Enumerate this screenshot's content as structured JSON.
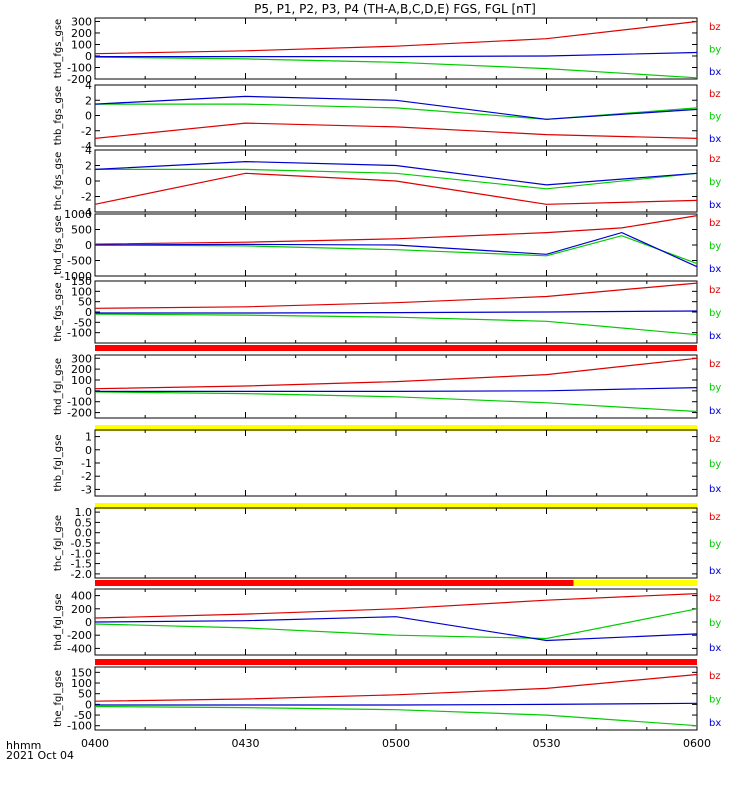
{
  "title": "P5, P1, P2, P3, P4 (TH-A,B,C,D,E) FGS, FGL [nT]",
  "time_axis": {
    "ticks": [
      "0400",
      "0430",
      "0500",
      "0530",
      "0600"
    ],
    "label_top": "hhmm",
    "label_bottom": "2021 Oct 04"
  },
  "legend_colors": {
    "bz": "#dd0000",
    "by": "#00cc00",
    "bx": "#0000cc"
  },
  "status_colors": {
    "red": "#ff0000",
    "yellow": "#ffff00",
    "black": "#000000"
  },
  "chart_data": [
    {
      "type": "line",
      "panel_id": "thd_fgs_gse",
      "ylabel": "thd_fgs_gse",
      "ylim": [
        -200,
        330
      ],
      "yticks": [
        "300",
        "200",
        "100",
        "0",
        "-100",
        "-200"
      ],
      "legend": [
        "bz",
        "by",
        "bx"
      ],
      "x": [
        "0400",
        "0430",
        "0500",
        "0530",
        "0600"
      ],
      "series": [
        {
          "name": "bz",
          "values": [
            20,
            45,
            85,
            150,
            300
          ]
        },
        {
          "name": "by",
          "values": [
            -10,
            -25,
            -55,
            -110,
            -190
          ]
        },
        {
          "name": "bx",
          "values": [
            -5,
            -5,
            -5,
            0,
            30
          ]
        }
      ]
    },
    {
      "type": "line",
      "panel_id": "thb_fgs_gse",
      "ylabel": "thb_fgs_gse",
      "ylim": [
        -4,
        4
      ],
      "yticks": [
        "4",
        "2",
        "0",
        "-2",
        "-4"
      ],
      "legend": [
        "bz",
        "by",
        "bx"
      ],
      "x": [
        "0400",
        "0430",
        "0500",
        "0530",
        "0600"
      ],
      "series": [
        {
          "name": "bz",
          "values": [
            -3,
            -1,
            -1.5,
            -2.5,
            -3
          ]
        },
        {
          "name": "by",
          "values": [
            1.5,
            1.5,
            1,
            -0.5,
            1
          ]
        },
        {
          "name": "bx",
          "values": [
            1.5,
            2.5,
            2,
            -0.5,
            0.8
          ]
        }
      ]
    },
    {
      "type": "line",
      "panel_id": "thc_fgs_gse",
      "ylabel": "thc_fgs_gse",
      "ylim": [
        -4,
        4
      ],
      "yticks": [
        "4",
        "2",
        "0",
        "-2",
        "-4"
      ],
      "legend": [
        "bz",
        "by",
        "bx"
      ],
      "x": [
        "0400",
        "0430",
        "0500",
        "0530",
        "0600"
      ],
      "series": [
        {
          "name": "bz",
          "values": [
            -3,
            1,
            0,
            -3,
            -2.5
          ]
        },
        {
          "name": "by",
          "values": [
            1.5,
            1.5,
            1,
            -1,
            1
          ]
        },
        {
          "name": "bx",
          "values": [
            1.5,
            2.5,
            2,
            -0.5,
            1
          ]
        }
      ]
    },
    {
      "type": "line",
      "panel_id": "thd_fgs_gse_2",
      "ylabel": "thd_fgs_gse",
      "ylim": [
        -1000,
        1000
      ],
      "yticks": [
        "1000",
        "500",
        "0",
        "-500",
        "-1000"
      ],
      "legend": [
        "bz",
        "by",
        "bx"
      ],
      "x": [
        "0400",
        "0430",
        "0500",
        "0530",
        "0545",
        "0600"
      ],
      "series": [
        {
          "name": "bz",
          "values": [
            30,
            90,
            200,
            400,
            550,
            950
          ]
        },
        {
          "name": "by",
          "values": [
            0,
            -30,
            -150,
            -350,
            300,
            -600
          ]
        },
        {
          "name": "bx",
          "values": [
            0,
            20,
            0,
            -300,
            400,
            -700
          ]
        }
      ]
    },
    {
      "type": "line",
      "panel_id": "the_fgs_gse",
      "ylabel": "the_fgs_gse",
      "ylim": [
        -150,
        150
      ],
      "yticks": [
        "150",
        "100",
        "50",
        "0",
        "-50",
        "-100"
      ],
      "legend": [
        "bz",
        "by",
        "bx"
      ],
      "x": [
        "0400",
        "0430",
        "0500",
        "0530",
        "0600"
      ],
      "series": [
        {
          "name": "bz",
          "values": [
            18,
            25,
            45,
            75,
            140
          ]
        },
        {
          "name": "by",
          "values": [
            -10,
            -15,
            -25,
            -45,
            -110
          ]
        },
        {
          "name": "bx",
          "values": [
            -5,
            -5,
            -3,
            0,
            5
          ]
        }
      ]
    },
    {
      "type": "line",
      "panel_id": "thd_fgl_gse",
      "ylabel": "thd_fgl_gse",
      "ylim": [
        -250,
        330
      ],
      "yticks": [
        "300",
        "200",
        "100",
        "0",
        "-100",
        "-200"
      ],
      "legend": [
        "bz",
        "by",
        "bx"
      ],
      "x": [
        "0400",
        "0430",
        "0500",
        "0530",
        "0600"
      ],
      "series": [
        {
          "name": "bz",
          "values": [
            20,
            45,
            85,
            150,
            300
          ]
        },
        {
          "name": "by",
          "values": [
            -10,
            -25,
            -55,
            -110,
            -190
          ]
        },
        {
          "name": "bx",
          "values": [
            -5,
            -5,
            -5,
            0,
            30
          ]
        }
      ]
    },
    {
      "type": "line",
      "panel_id": "thb_fgl_gse",
      "ylabel": "thb_fgl_gse",
      "ylim": [
        -3.5,
        1.5
      ],
      "yticks": [
        "1",
        "0",
        "-1",
        "-2",
        "-3"
      ],
      "legend": [
        "bz",
        "by",
        "bx"
      ],
      "series": []
    },
    {
      "type": "line",
      "panel_id": "thc_fgl_gse",
      "ylabel": "thc_fgl_gse",
      "ylim": [
        -2.2,
        1.2
      ],
      "yticks": [
        "1.0",
        "0.5",
        "0.0",
        "-0.5",
        "-1.0",
        "-1.5",
        "-2.0"
      ],
      "legend": [
        "bz",
        "by",
        "bx"
      ],
      "series": []
    },
    {
      "type": "line",
      "panel_id": "thd_fgl_gse_2",
      "ylabel": "thd_fgl_gse",
      "ylim": [
        -500,
        500
      ],
      "yticks": [
        "400",
        "200",
        "0",
        "-200",
        "-400"
      ],
      "legend": [
        "bz",
        "by",
        "bx"
      ],
      "x": [
        "0400",
        "0430",
        "0500",
        "0530",
        "0600"
      ],
      "series": [
        {
          "name": "bz",
          "values": [
            60,
            120,
            200,
            330,
            430
          ]
        },
        {
          "name": "by",
          "values": [
            -30,
            -90,
            -200,
            -250,
            200
          ]
        },
        {
          "name": "bx",
          "values": [
            0,
            20,
            80,
            -280,
            -180
          ]
        }
      ]
    },
    {
      "type": "line",
      "panel_id": "the_fgl_gse",
      "ylabel": "the_fgl_gse",
      "ylim": [
        -120,
        175
      ],
      "yticks": [
        "150",
        "100",
        "50",
        "0",
        "-50",
        "-100"
      ],
      "legend": [
        "bz",
        "by",
        "bx"
      ],
      "x": [
        "0400",
        "0430",
        "0500",
        "0530",
        "0600"
      ],
      "series": [
        {
          "name": "bz",
          "values": [
            15,
            25,
            45,
            75,
            140
          ]
        },
        {
          "name": "by",
          "values": [
            -10,
            -15,
            -25,
            -50,
            -100
          ]
        },
        {
          "name": "bx",
          "values": [
            -3,
            -3,
            -3,
            0,
            5
          ]
        }
      ]
    }
  ]
}
